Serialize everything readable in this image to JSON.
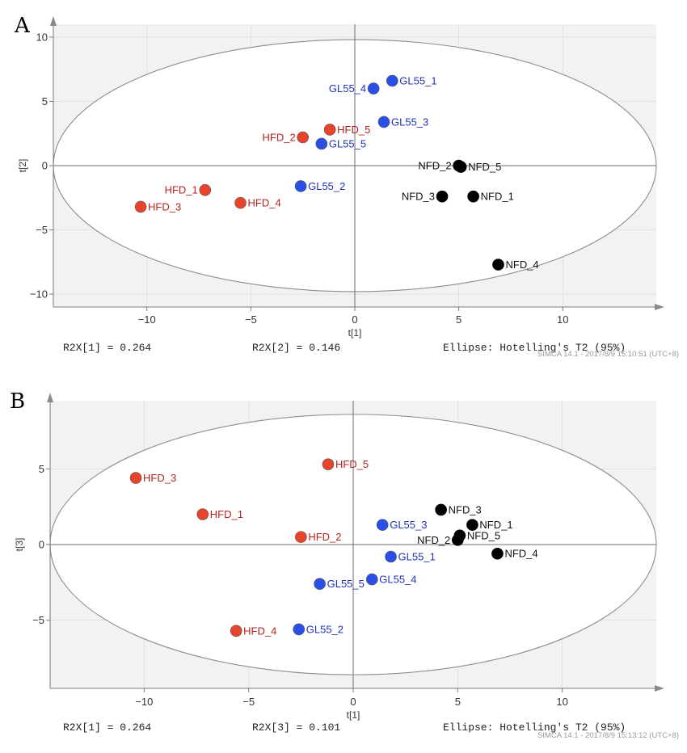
{
  "colors": {
    "HFD": "#e8432d",
    "GL55": "#2a4fe6",
    "NFD": "#000000",
    "HFD_text": "#b5221c",
    "GL55_text": "#2233b8",
    "NFD_text": "#111111"
  },
  "chart_data": [
    {
      "type": "scatter",
      "panel": "A",
      "xlabel": "t[1]",
      "ylabel": "t[2]",
      "xlim": [
        -14.5,
        14.5
      ],
      "ylim": [
        -11,
        11
      ],
      "xticks": [
        -10,
        -5,
        0,
        5,
        10
      ],
      "yticks": [
        -10,
        -5,
        0,
        5,
        10
      ],
      "ellipse": {
        "rx": 14.5,
        "ry": 9.8
      },
      "footer": {
        "r2x_first": "R2X[1] = 0.264",
        "r2x_second": "R2X[2] = 0.146",
        "ellipse_note": "Ellipse: Hotelling's T2 (95%)"
      },
      "stamp": "SIMCA 14.1 - 2017/8/9 15:10:51 (UTC+8)",
      "points": [
        {
          "label": "HFD_1",
          "group": "HFD",
          "x": -7.2,
          "y": -1.9,
          "pos": "left"
        },
        {
          "label": "HFD_2",
          "group": "HFD",
          "x": -2.5,
          "y": 2.2,
          "pos": "left"
        },
        {
          "label": "HFD_3",
          "group": "HFD",
          "x": -10.3,
          "y": -3.2,
          "pos": "right"
        },
        {
          "label": "HFD_4",
          "group": "HFD",
          "x": -5.5,
          "y": -2.9,
          "pos": "right"
        },
        {
          "label": "HFD_5",
          "group": "HFD",
          "x": -1.2,
          "y": 2.8,
          "pos": "right"
        },
        {
          "label": "GL55_1",
          "group": "GL55",
          "x": 1.8,
          "y": 6.6,
          "pos": "right"
        },
        {
          "label": "GL55_2",
          "group": "GL55",
          "x": -2.6,
          "y": -1.6,
          "pos": "right"
        },
        {
          "label": "GL55_3",
          "group": "GL55",
          "x": 1.4,
          "y": 3.4,
          "pos": "right"
        },
        {
          "label": "GL55_4",
          "group": "GL55",
          "x": 0.9,
          "y": 6.0,
          "pos": "left"
        },
        {
          "label": "GL55_5",
          "group": "GL55",
          "x": -1.6,
          "y": 1.7,
          "pos": "right"
        },
        {
          "label": "NFD_1",
          "group": "NFD",
          "x": 5.7,
          "y": -2.4,
          "pos": "right"
        },
        {
          "label": "NFD_2",
          "group": "NFD",
          "x": 5.0,
          "y": 0.0,
          "pos": "left"
        },
        {
          "label": "NFD_3",
          "group": "NFD",
          "x": 4.2,
          "y": -2.4,
          "pos": "left"
        },
        {
          "label": "NFD_4",
          "group": "NFD",
          "x": 6.9,
          "y": -7.7,
          "pos": "right"
        },
        {
          "label": "NFD_5",
          "group": "NFD",
          "x": 5.1,
          "y": -0.1,
          "pos": "right"
        }
      ]
    },
    {
      "type": "scatter",
      "panel": "B",
      "xlabel": "t[1]",
      "ylabel": "t[3]",
      "xlim": [
        -14.5,
        14.5
      ],
      "ylim": [
        -9.5,
        9.5
      ],
      "xticks": [
        -10,
        -5,
        0,
        5,
        10
      ],
      "yticks": [
        -5,
        0,
        5
      ],
      "ellipse": {
        "rx": 14.5,
        "ry": 8.6
      },
      "footer": {
        "r2x_first": "R2X[1] = 0.264",
        "r2x_second": "R2X[3] = 0.101",
        "ellipse_note": "Ellipse: Hotelling's T2 (95%)"
      },
      "stamp": "SIMCA 14.1 - 2017/8/9 15:13:12 (UTC+8)",
      "points": [
        {
          "label": "HFD_1",
          "group": "HFD",
          "x": -7.2,
          "y": 2.0,
          "pos": "right"
        },
        {
          "label": "HFD_2",
          "group": "HFD",
          "x": -2.5,
          "y": 0.5,
          "pos": "right"
        },
        {
          "label": "HFD_3",
          "group": "HFD",
          "x": -10.4,
          "y": 4.4,
          "pos": "right"
        },
        {
          "label": "HFD_4",
          "group": "HFD",
          "x": -5.6,
          "y": -5.7,
          "pos": "right"
        },
        {
          "label": "HFD_5",
          "group": "HFD",
          "x": -1.2,
          "y": 5.3,
          "pos": "right"
        },
        {
          "label": "GL55_1",
          "group": "GL55",
          "x": 1.8,
          "y": -0.8,
          "pos": "right"
        },
        {
          "label": "GL55_2",
          "group": "GL55",
          "x": -2.6,
          "y": -5.6,
          "pos": "right"
        },
        {
          "label": "GL55_3",
          "group": "GL55",
          "x": 1.4,
          "y": 1.3,
          "pos": "right"
        },
        {
          "label": "GL55_4",
          "group": "GL55",
          "x": 0.9,
          "y": -2.3,
          "pos": "right"
        },
        {
          "label": "GL55_5",
          "group": "GL55",
          "x": -1.6,
          "y": -2.6,
          "pos": "right"
        },
        {
          "label": "NFD_1",
          "group": "NFD",
          "x": 5.7,
          "y": 1.3,
          "pos": "right"
        },
        {
          "label": "NFD_2",
          "group": "NFD",
          "x": 5.0,
          "y": 0.3,
          "pos": "left"
        },
        {
          "label": "NFD_3",
          "group": "NFD",
          "x": 4.2,
          "y": 2.3,
          "pos": "right"
        },
        {
          "label": "NFD_4",
          "group": "NFD",
          "x": 6.9,
          "y": -0.6,
          "pos": "right"
        },
        {
          "label": "NFD_5",
          "group": "NFD",
          "x": 5.1,
          "y": 0.6,
          "pos": "right"
        }
      ]
    }
  ]
}
